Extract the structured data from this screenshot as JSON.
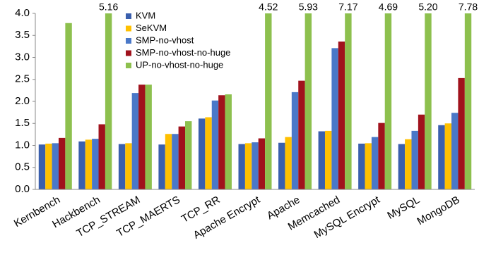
{
  "chart_data": {
    "type": "bar",
    "categories": [
      "Kernbench",
      "Hackbench",
      "TCP_STREAM",
      "TCP_MAERTS",
      "TCP_RR",
      "Apache  Encrypt",
      "Apache",
      "Memcached",
      "MySQL Encrypt",
      "MySQL",
      "MongoDB"
    ],
    "series": [
      {
        "name": "KVM",
        "color": "#3a5fad",
        "values": [
          1.02,
          1.09,
          1.03,
          1.02,
          1.61,
          1.03,
          1.06,
          1.32,
          1.04,
          1.03,
          1.46
        ]
      },
      {
        "name": "SeKVM",
        "color": "#ffc000",
        "values": [
          1.04,
          1.13,
          1.05,
          1.26,
          1.64,
          1.05,
          1.19,
          1.33,
          1.05,
          1.14,
          1.5
        ]
      },
      {
        "name": "SMP-no-vhost",
        "color": "#4a78c8",
        "values": [
          1.05,
          1.15,
          2.19,
          1.26,
          2.02,
          1.07,
          2.21,
          3.21,
          1.19,
          1.33,
          1.74
        ]
      },
      {
        "name": "SMP-no-vhost-no-huge",
        "color": "#a0121c",
        "values": [
          1.17,
          1.48,
          2.38,
          1.43,
          2.14,
          1.16,
          2.47,
          3.36,
          1.51,
          1.7,
          2.53
        ]
      },
      {
        "name": "UP-no-vhost-no-huge",
        "color": "#8dc04e",
        "values": [
          3.78,
          5.16,
          2.38,
          1.55,
          2.16,
          4.52,
          5.93,
          7.17,
          4.69,
          5.2,
          7.78
        ],
        "value_labels": [
          null,
          "5.16",
          null,
          null,
          null,
          "4.52",
          "5.93",
          "7.17",
          "4.69",
          "5.20",
          "7.78"
        ]
      }
    ],
    "ylim": [
      0,
      4
    ],
    "yticks": [
      {
        "value": 0,
        "label": "0.0"
      },
      {
        "value": 0.5,
        "label": "0.5"
      },
      {
        "value": 1,
        "label": "1.0"
      },
      {
        "value": 1.5,
        "label": "1.5"
      },
      {
        "value": 2,
        "label": "2.0"
      },
      {
        "value": 2.5,
        "label": "2.5"
      },
      {
        "value": 3,
        "label": "3.0"
      },
      {
        "value": 3.5,
        "label": "3.5"
      },
      {
        "value": 4,
        "label": "4.0"
      }
    ],
    "grid": false,
    "legend": "top-left"
  }
}
